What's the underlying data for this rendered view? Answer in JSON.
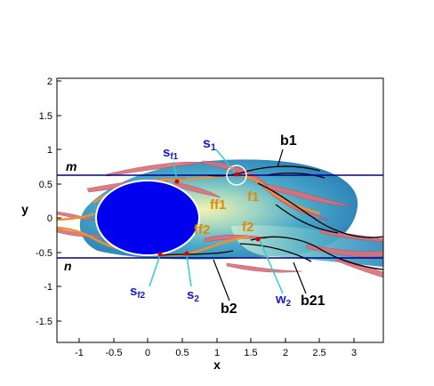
{
  "axes": {
    "xlabel": "x",
    "ylabel": "y",
    "xticks": [
      "-1",
      "-0.5",
      "0",
      "0.5",
      "1",
      "1.5",
      "2",
      "2.5",
      "3"
    ],
    "yticks": [
      "2",
      "1.5",
      "1",
      "0.5",
      "0",
      "-0.5",
      "-1",
      "-1.5"
    ]
  },
  "lines": {
    "m": "m",
    "n": "n"
  },
  "labels": {
    "s1": "s",
    "s1_sub": "1",
    "sf1": "s",
    "sf1_sub": "f1",
    "sf2": "s",
    "sf2_sub": "f2",
    "s2": "s",
    "s2_sub": "2",
    "w2": "w",
    "w2_sub": "2",
    "b1": "b1",
    "b2": "b2",
    "b21": "b21",
    "f1": "f1",
    "ff1": "ff1",
    "ff2": "ff2",
    "f2": "f2"
  },
  "colors": {
    "cylinder": "#0000ee",
    "line": "#00008b",
    "blue_label": "#1a1acc",
    "orange_label": "#e08a00",
    "leader": "#33cccc",
    "marker": "#dd0000",
    "streak": "#d9707a"
  }
}
